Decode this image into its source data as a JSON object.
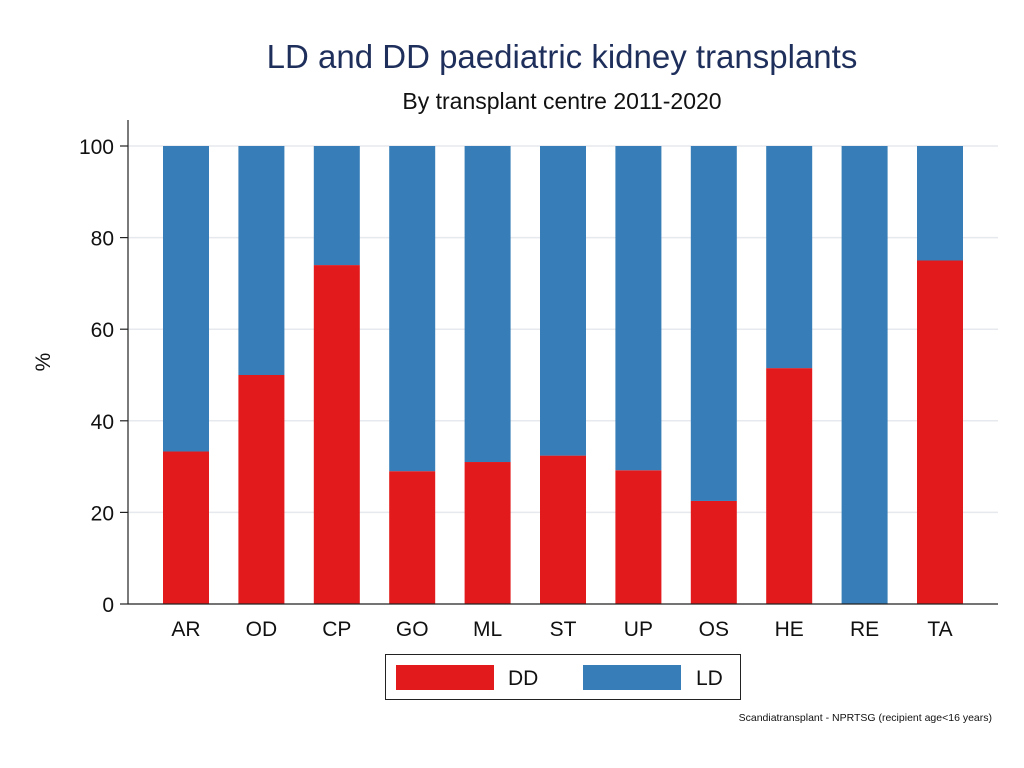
{
  "chart_data": {
    "type": "bar",
    "stacked": true,
    "title": "LD and DD paediatric kidney transplants",
    "subtitle": "By transplant centre 2011-2020",
    "xlabel": "",
    "ylabel": "%",
    "ylim": [
      0,
      100
    ],
    "yticks": [
      "0",
      "20",
      "40",
      "60",
      "80",
      "100"
    ],
    "categories": [
      "AR",
      "OD",
      "CP",
      "GO",
      "ML",
      "ST",
      "UP",
      "OS",
      "HE",
      "RE",
      "TA"
    ],
    "series": [
      {
        "name": "DD",
        "color": "#e31a1c",
        "values": [
          33.3,
          50,
          74,
          29,
          31,
          32.4,
          29.2,
          22.5,
          51.5,
          0,
          75
        ]
      },
      {
        "name": "LD",
        "color": "#377eb8",
        "values": [
          66.7,
          50,
          26,
          71,
          69,
          67.6,
          70.8,
          77.5,
          48.5,
          100,
          25
        ]
      }
    ],
    "legend": {
      "position": "bottom",
      "labels": [
        "DD",
        "LD"
      ]
    },
    "grid": true,
    "source_note": "Scandiatransplant - NPRTSG (recipient age<16 years)"
  }
}
